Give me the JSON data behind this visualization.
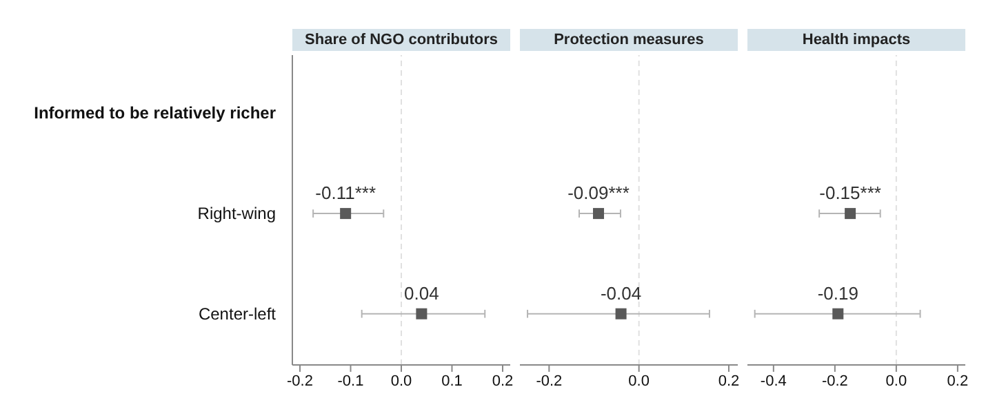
{
  "chart_data": [
    {
      "type": "scatter",
      "title": "Share of NGO contributors",
      "orientation": "horizontal",
      "categories": [
        "Informed to be relatively richer",
        "Right-wing",
        "Center-left"
      ],
      "values": [
        null,
        -0.11,
        0.04
      ],
      "errors": [
        null,
        [
          -0.174,
          -0.035
        ],
        [
          -0.078,
          0.165
        ]
      ],
      "value_labels": [
        null,
        "-0.11***",
        "0.04"
      ],
      "color": "#595959",
      "marker": "square",
      "xlim": [
        -0.215,
        0.215
      ],
      "xticks": [
        {
          "value": -0.2,
          "label": "-0.2"
        },
        {
          "value": -0.1,
          "label": "-0.1"
        },
        {
          "value": 0,
          "label": "0.0"
        },
        {
          "value": 0.1,
          "label": "0.1"
        },
        {
          "value": 0.2,
          "label": "0.2"
        }
      ],
      "ref_lines": [
        {
          "axis": "x",
          "value": 0,
          "color": "#e0e0e0",
          "line_style": "dashed"
        }
      ],
      "grid": false
    },
    {
      "type": "scatter",
      "title": "Protection measures",
      "orientation": "horizontal",
      "categories": [
        null,
        null,
        null
      ],
      "values": [
        null,
        -0.09,
        -0.04
      ],
      "errors": [
        null,
        [
          -0.133,
          -0.041
        ],
        [
          -0.248,
          0.157
        ]
      ],
      "value_labels": [
        null,
        "-0.09***",
        "-0.04"
      ],
      "color": "#595959",
      "marker": "square",
      "xlim": [
        -0.265,
        0.22
      ],
      "xticks": [
        {
          "value": -0.2,
          "label": "-0.2"
        },
        {
          "value": 0,
          "label": "0.0"
        },
        {
          "value": 0.2,
          "label": "0.2"
        }
      ],
      "ref_lines": [
        {
          "axis": "x",
          "value": 0,
          "color": "#e0e0e0",
          "line_style": "dashed"
        }
      ],
      "grid": false,
      "tick_labels": "x"
    },
    {
      "type": "scatter",
      "title": "Health impacts",
      "orientation": "horizontal",
      "categories": [
        null,
        null,
        null
      ],
      "values": [
        null,
        -0.15,
        -0.19
      ],
      "errors": [
        null,
        [
          -0.251,
          -0.052
        ],
        [
          -0.461,
          0.078
        ]
      ],
      "value_labels": [
        null,
        "-0.15***",
        "-0.19"
      ],
      "color": "#595959",
      "marker": "square",
      "xlim": [
        -0.485,
        0.225
      ],
      "xticks": [
        {
          "value": -0.4,
          "label": "-0.4"
        },
        {
          "value": -0.2,
          "label": "-0.2"
        },
        {
          "value": 0,
          "label": "0.0"
        },
        {
          "value": 0.2,
          "label": "0.2"
        }
      ],
      "ref_lines": [
        {
          "axis": "x",
          "value": 0,
          "color": "#e0e0e0",
          "line_style": "dashed"
        }
      ],
      "grid": false,
      "tick_labels": "x"
    }
  ]
}
